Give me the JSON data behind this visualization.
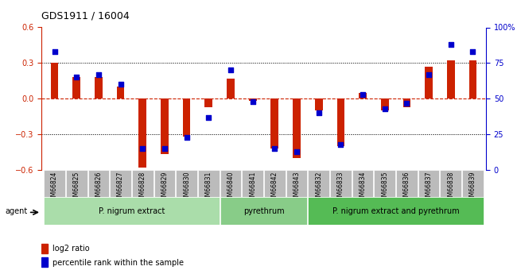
{
  "title": "GDS1911 / 16004",
  "samples": [
    "GSM66824",
    "GSM66825",
    "GSM66826",
    "GSM66827",
    "GSM66828",
    "GSM66829",
    "GSM66830",
    "GSM66831",
    "GSM66840",
    "GSM66841",
    "GSM66842",
    "GSM66843",
    "GSM66832",
    "GSM66833",
    "GSM66834",
    "GSM66835",
    "GSM66836",
    "GSM66837",
    "GSM66838",
    "GSM66839"
  ],
  "log2_ratio": [
    0.3,
    0.18,
    0.18,
    0.1,
    -0.58,
    -0.47,
    -0.32,
    -0.07,
    0.17,
    -0.02,
    -0.42,
    -0.5,
    -0.1,
    -0.4,
    0.05,
    -0.1,
    -0.07,
    0.27,
    0.32,
    0.32
  ],
  "percentile": [
    83,
    65,
    67,
    60,
    15,
    15,
    23,
    37,
    70,
    48,
    15,
    13,
    40,
    18,
    53,
    43,
    47,
    67,
    88,
    83
  ],
  "bar_color": "#cc2200",
  "dot_color": "#0000cc",
  "groups": [
    {
      "label": "P. nigrum extract",
      "start": 0,
      "end": 8,
      "color": "#aaddaa"
    },
    {
      "label": "pyrethrum",
      "start": 8,
      "end": 12,
      "color": "#88cc88"
    },
    {
      "label": "P. nigrum extract and pyrethrum",
      "start": 12,
      "end": 20,
      "color": "#55bb55"
    }
  ],
  "ylim_left": [
    -0.6,
    0.6
  ],
  "ylim_right": [
    0,
    100
  ],
  "yticks_left": [
    -0.6,
    -0.3,
    0.0,
    0.3,
    0.6
  ],
  "yticks_right": [
    0,
    25,
    50,
    75,
    100
  ],
  "hlines": [
    0.3,
    -0.3
  ],
  "legend_items": [
    "log2 ratio",
    "percentile rank within the sample"
  ],
  "xlabel_color": "#cc2200",
  "right_axis_color": "#0000cc",
  "zero_line_color": "#cc2200",
  "dotted_line_color": "#333333",
  "background_plot": "#ffffff",
  "tick_bg": "#bbbbbb"
}
